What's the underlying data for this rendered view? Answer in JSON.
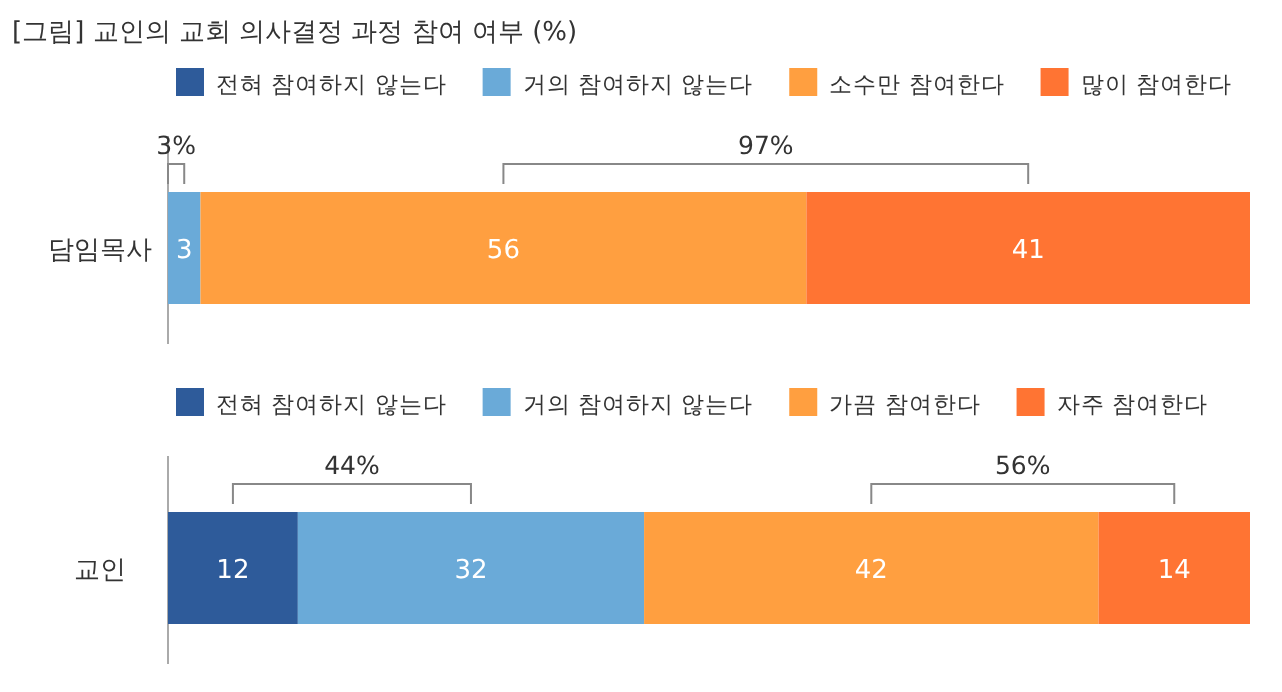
{
  "chart_data": [
    {
      "type": "bar",
      "title": "[그림] 교인의 교회 의사결정 과정 참여 여부 (%)",
      "orientation": "horizontal",
      "stacked": true,
      "legend": "top",
      "categories": [
        "담임목사"
      ],
      "series": [
        {
          "name": "전혀 참여하지 않는다",
          "color": "#2e5b9a",
          "values": [
            0
          ],
          "value_labels": [
            null
          ]
        },
        {
          "name": "거의 참여하지 않는다",
          "color": "#6aaad8",
          "values": [
            3
          ],
          "value_labels": [
            "3"
          ]
        },
        {
          "name": "소수만 참여한다",
          "color": "#ff9f40",
          "values": [
            56
          ],
          "value_labels": [
            "56"
          ]
        },
        {
          "name": "많이 참여한다",
          "color": "#ff7433",
          "values": [
            41
          ],
          "value_labels": [
            "41"
          ]
        }
      ],
      "annotations": [
        "3%",
        "97%"
      ]
    },
    {
      "type": "bar",
      "orientation": "horizontal",
      "stacked": true,
      "legend": "top",
      "categories": [
        "교인"
      ],
      "series": [
        {
          "name": "전혀 참여하지 않는다",
          "color": "#2e5b9a",
          "values": [
            12
          ],
          "value_labels": [
            "12"
          ]
        },
        {
          "name": "거의 참여하지 않는다",
          "color": "#6aaad8",
          "values": [
            32
          ],
          "value_labels": [
            "32"
          ]
        },
        {
          "name": "가끔 참여한다",
          "color": "#ff9f40",
          "values": [
            42
          ],
          "value_labels": [
            "42"
          ]
        },
        {
          "name": "자주 참여한다",
          "color": "#ff7433",
          "values": [
            14
          ],
          "value_labels": [
            "14"
          ]
        }
      ],
      "annotations": [
        "44%",
        "56%"
      ]
    }
  ]
}
